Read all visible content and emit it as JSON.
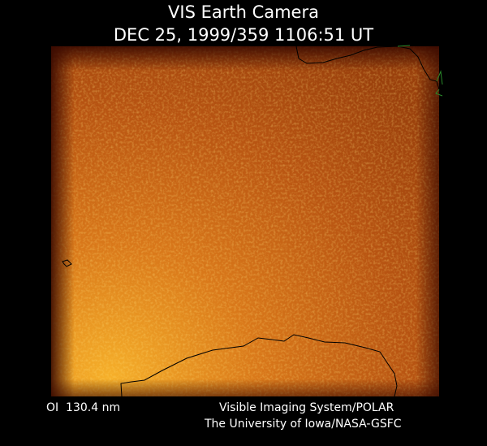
{
  "header": {
    "title": "VIS Earth Camera",
    "timestamp": "DEC 25, 1999/359 1106:51 UT"
  },
  "footer": {
    "wavelength": "OI  130.4 nm",
    "instrument": "Visible Imaging System/POLAR",
    "institution": "The University of Iowa/NASA-GSFC"
  }
}
